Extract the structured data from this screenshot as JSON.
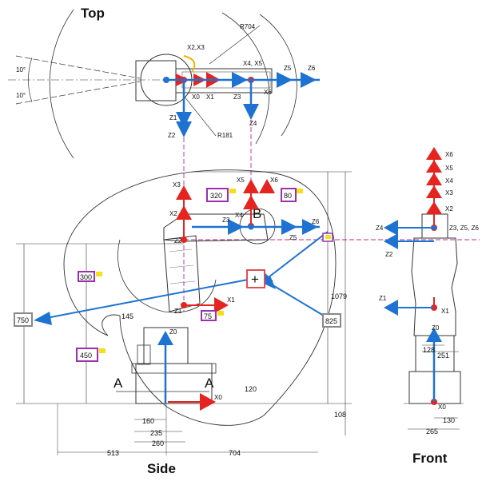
{
  "views": {
    "top": "Top",
    "side": "Side",
    "front": "Front"
  },
  "top_view": {
    "radius_outer": "R704",
    "radius_inner": "R181",
    "angle_upper": "10°",
    "angle_lower": "10°",
    "labels": [
      "X2,X3",
      "X4, X5",
      "Z5",
      "Z6",
      "X0",
      "X1",
      "Z3",
      "X6",
      "Z1",
      "Z2",
      "Z4"
    ]
  },
  "side_view": {
    "axis_labels": [
      "X3",
      "X2",
      "X5",
      "X6",
      "X4",
      "Z3",
      "B",
      "Z6",
      "Z5",
      "Z2",
      "Z1",
      "X1",
      "Z0",
      "X0"
    ],
    "section_a_left": "A",
    "section_a_right": "A",
    "boxes": {
      "b320": "320",
      "b80": "80",
      "b300": "300",
      "b75": "75",
      "b450": "450",
      "b750": "750",
      "b825": "825"
    },
    "dims": {
      "d145": "145",
      "d1079": "1079",
      "d120": "120",
      "d108": "108",
      "d160": "160",
      "d235": "235",
      "d260": "260",
      "d513": "513",
      "d704": "704"
    }
  },
  "front_view": {
    "axis_labels": [
      "X6",
      "X5",
      "X4",
      "X3",
      "X2",
      "Z4",
      "Z3, Z5, Z6",
      "Z2",
      "Z1",
      "X1",
      "Z0",
      "X0"
    ],
    "dims": {
      "d128": "128",
      "d251": "251",
      "d130": "130",
      "d265": "265"
    }
  },
  "colors": {
    "x_axis": "#e52420",
    "z_axis": "#1e73d2",
    "guide": "#c0288f",
    "box_purple": "#9b2fb0",
    "box_grey": "#888888",
    "tcp_box": "#e05050",
    "note_yellow": "#f3e019",
    "outline": "#333333"
  }
}
